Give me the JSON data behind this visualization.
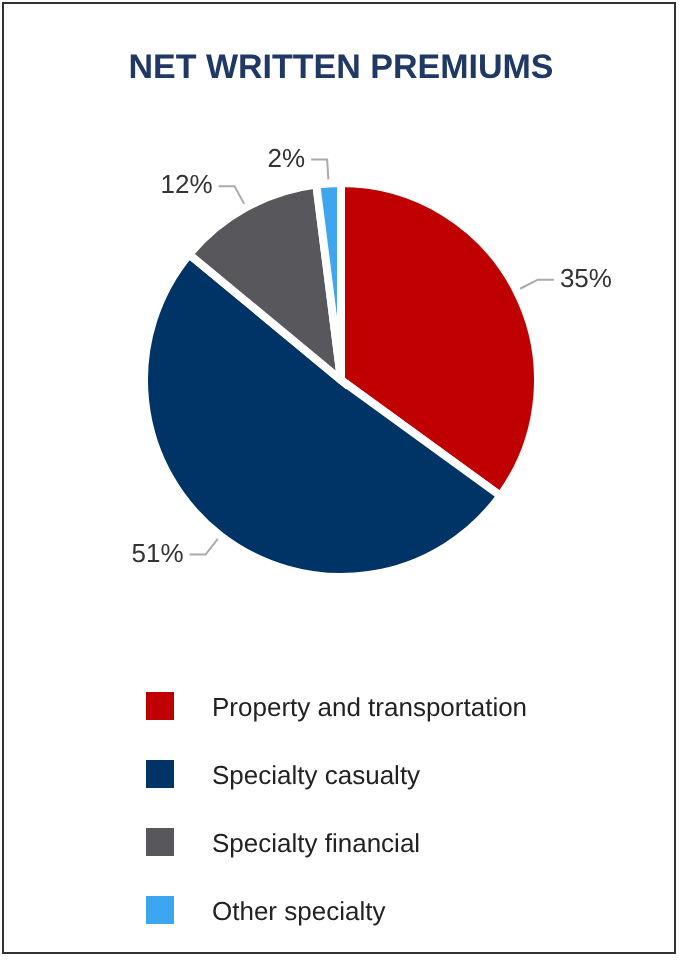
{
  "chart_data": {
    "type": "pie",
    "title": "NET WRITTEN PREMIUMS",
    "categories": [
      "Property and transportation",
      "Specialty casualty",
      "Specialty financial",
      "Other specialty"
    ],
    "values": [
      35,
      51,
      12,
      2
    ],
    "value_labels": [
      "35%",
      "51%",
      "12%",
      "2%"
    ],
    "colors": [
      "#c00000",
      "#003366",
      "#58585c",
      "#3ea6f0"
    ],
    "legend": "bottom"
  }
}
